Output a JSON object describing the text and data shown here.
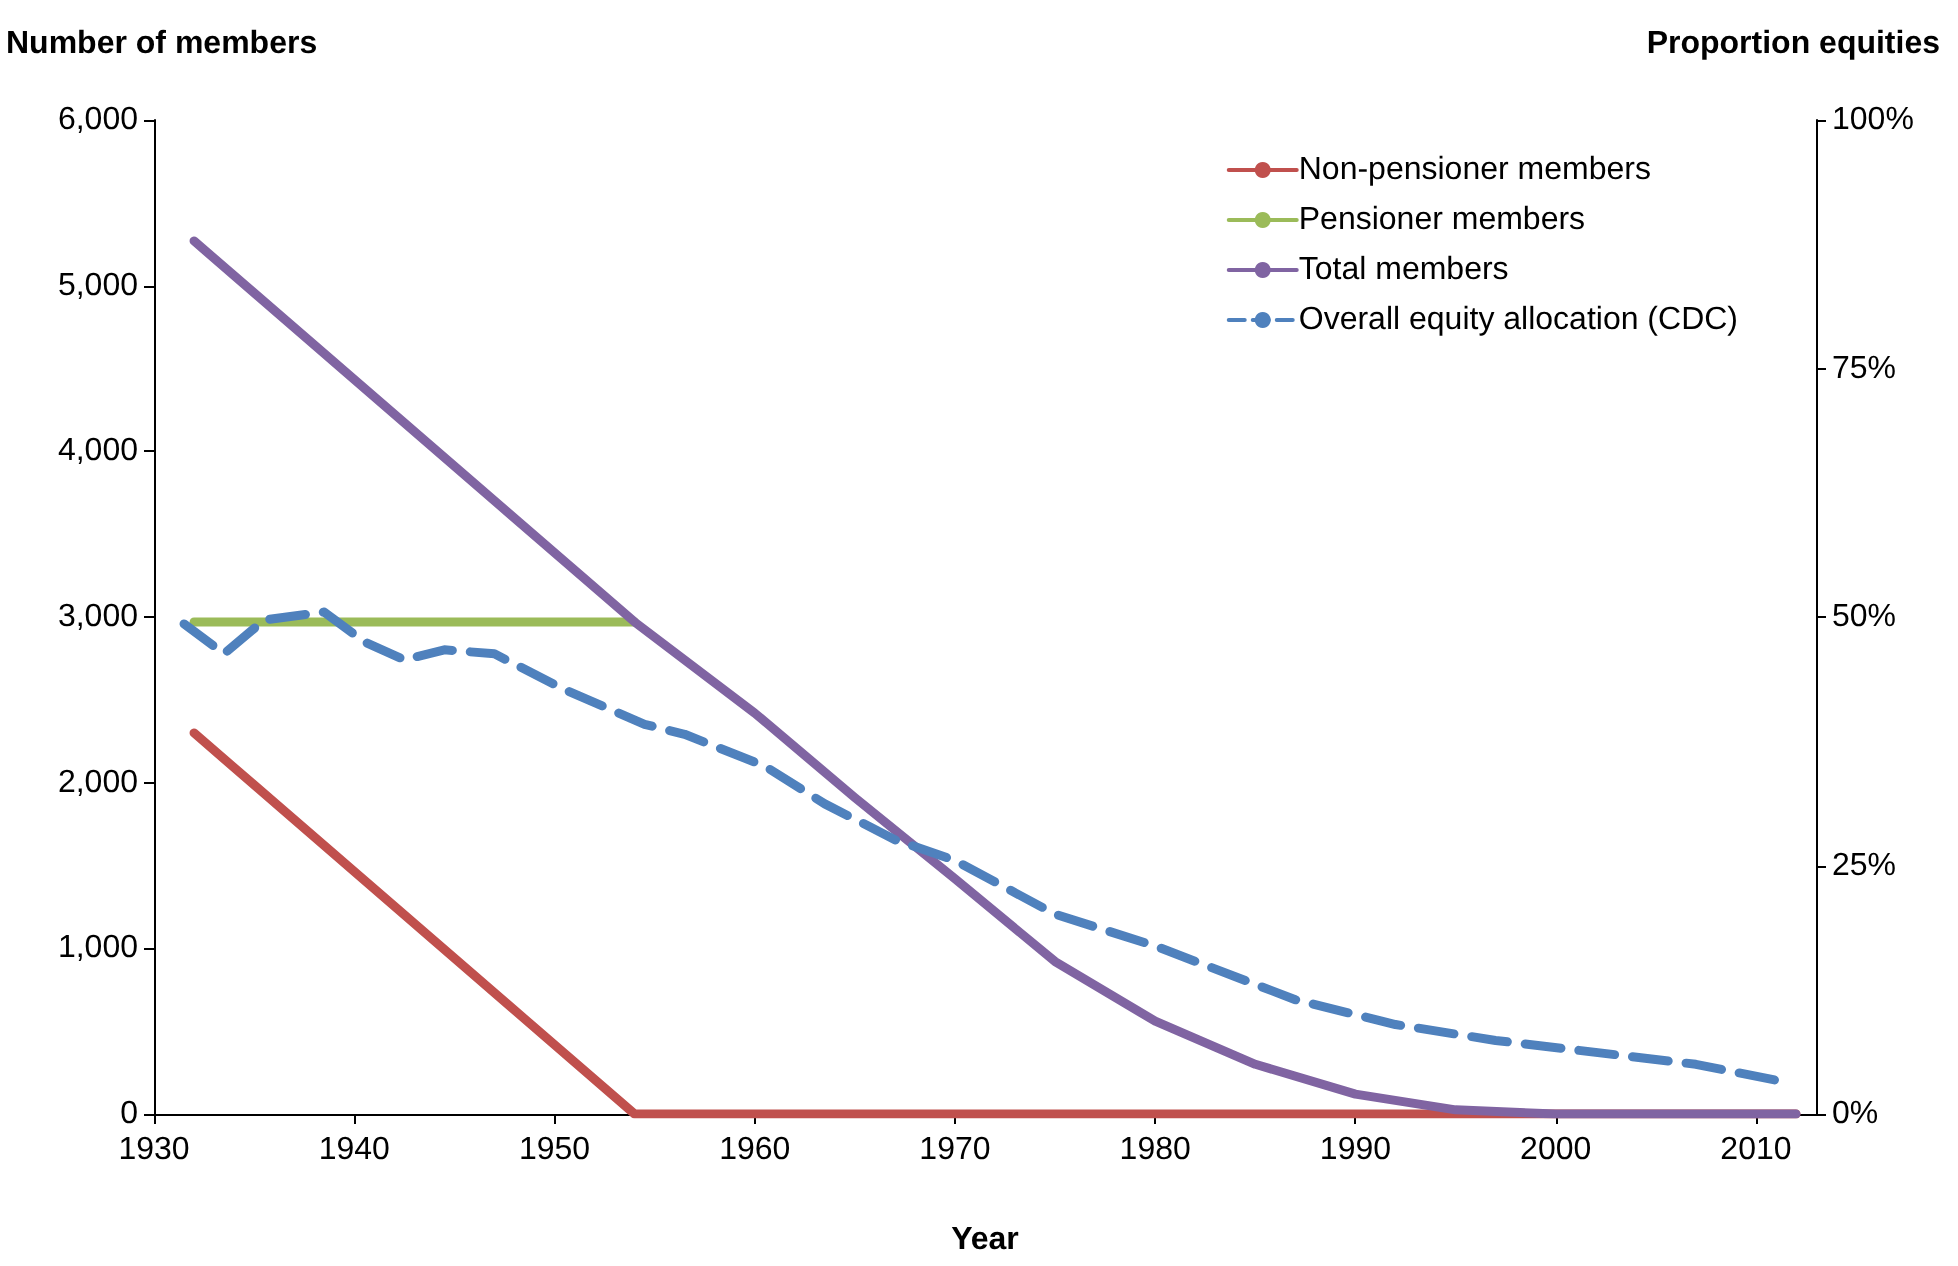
{
  "chart_data": {
    "type": "line",
    "xlabel": "Year",
    "ylabel": "Number of members",
    "y2label": "Proportion equities",
    "xlim": [
      1930,
      2013
    ],
    "xticks": [
      1930,
      1940,
      1950,
      1960,
      1970,
      1980,
      1990,
      2000,
      2010
    ],
    "ylim": [
      0,
      6000
    ],
    "yticks": [
      {
        "value": 0,
        "label": "0"
      },
      {
        "value": 1000,
        "label": "1,000"
      },
      {
        "value": 2000,
        "label": "2,000"
      },
      {
        "value": 3000,
        "label": "3,000"
      },
      {
        "value": 4000,
        "label": "4,000"
      },
      {
        "value": 5000,
        "label": "5,000"
      },
      {
        "value": 6000,
        "label": "6,000"
      }
    ],
    "y2lim": [
      0,
      100
    ],
    "y2ticks": [
      {
        "value": 0,
        "label": "0%"
      },
      {
        "value": 25,
        "label": "25%"
      },
      {
        "value": 50,
        "label": "50%"
      },
      {
        "value": 75,
        "label": "75%"
      },
      {
        "value": 100,
        "label": "100%"
      }
    ],
    "grid": false,
    "legend": "top right",
    "series": [
      {
        "name": "Non-pensioner members",
        "color": "#c0504d",
        "x": [
          1932,
          1954,
          2012
        ],
        "values": [
          2300,
          0,
          0
        ]
      },
      {
        "name": "Pensioner members",
        "color": "#9bbb59",
        "x": [
          1932,
          1954
        ],
        "values": [
          2970,
          2970
        ]
      },
      {
        "name": "Total members",
        "color": "#8064a2",
        "x": [
          1932,
          1954,
          1960,
          1965,
          1970,
          1975,
          1980,
          1985,
          1990,
          1995,
          2000,
          2012
        ],
        "values": [
          5270,
          2970,
          2420,
          1910,
          1420,
          920,
          560,
          300,
          120,
          25,
          0,
          0
        ]
      },
      {
        "name": "Overall equity allocation (CDC)",
        "color": "#4f81bd",
        "axis": "y2",
        "line_style": "dashed",
        "x": [
          1931.5,
          1933.5,
          1935.5,
          1938.5,
          1940.5,
          1942.5,
          1944.5,
          1947,
          1950.5,
          1954.5,
          1956.5,
          1960.5,
          1963.5,
          1967,
          1970,
          1975,
          1980,
          1987,
          1992,
          1997,
          2002,
          2007,
          2011.5
        ],
        "values": [
          49.3,
          46.3,
          49.7,
          50.5,
          47.5,
          45.7,
          46.7,
          46.3,
          42.7,
          39.2,
          38.2,
          35,
          31.2,
          27.6,
          25.5,
          20.1,
          16.9,
          11.5,
          9,
          7.4,
          6.2,
          5,
          3.2
        ]
      }
    ]
  }
}
